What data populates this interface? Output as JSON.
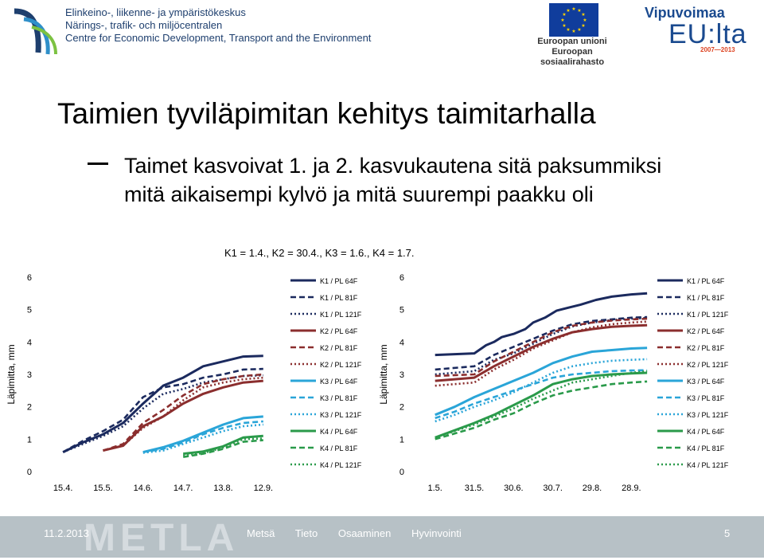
{
  "header": {
    "ely_lines": [
      "Elinkeino-, liikenne- ja ympäristökeskus",
      "Närings-, trafik- och miljöcentralen",
      "Centre for Economic Development, Transport and the Environment"
    ],
    "eu_lines": [
      "Euroopan unioni",
      "Euroopan sosiaalirahasto"
    ],
    "vipuvoimaa": "Vipuvoimaa",
    "euita": "EU:lta",
    "years": "2007—2013"
  },
  "slide": {
    "title": "Taimien tyviläpimitan kehitys taimitarhalla",
    "bullet": "Taimet kasvoivat 1. ja 2. kasvukautena sitä paksummiksi mitä aikaisempi kylvö ja mitä suurempi paakku oli",
    "note": "K1 = 1.4., K2 = 30.4., K3 = 1.6., K4 = 1.7."
  },
  "footer": {
    "date": "11.2.2013",
    "words": [
      "Metsä",
      "Tieto",
      "Osaaminen",
      "Hyvinvointi"
    ],
    "page": "5",
    "logo": "METLA"
  },
  "colors": {
    "K1": "#1b2a5e",
    "K2": "#8b2e2e",
    "K3": "#2aa5d8",
    "K4": "#2a9a4a"
  },
  "chart_data": [
    {
      "type": "line",
      "title": "",
      "xlabel": "",
      "ylabel": "Läpimitta, mm",
      "ylim": [
        0,
        6
      ],
      "x_ticks": [
        "15.4.",
        "15.5.",
        "14.6.",
        "14.7.",
        "13.8.",
        "12.9."
      ],
      "legend_position": "right",
      "series": [
        {
          "name": "K1 / PL 64F",
          "x": [
            0.5,
            1,
            1.5,
            2,
            2.5,
            3,
            3.5,
            4,
            4.5,
            5,
            5.5
          ],
          "values": [
            0.6,
            0.9,
            1.15,
            1.5,
            2.1,
            2.65,
            2.9,
            3.25,
            3.4,
            3.55,
            3.57
          ]
        },
        {
          "name": "K1 / PL 81F",
          "x": [
            0.5,
            1,
            1.5,
            2,
            2.5,
            3,
            3.5,
            4,
            4.5,
            5,
            5.5
          ],
          "values": [
            0.6,
            0.95,
            1.25,
            1.6,
            2.3,
            2.6,
            2.7,
            2.9,
            3.0,
            3.15,
            3.17
          ]
        },
        {
          "name": "K1 / PL 121F",
          "x": [
            0.5,
            1,
            1.5,
            2,
            2.5,
            3,
            3.5,
            4,
            4.5,
            5,
            5.5
          ],
          "values": [
            0.6,
            0.85,
            1.1,
            1.4,
            1.95,
            2.4,
            2.55,
            2.75,
            2.85,
            2.95,
            2.97
          ]
        },
        {
          "name": "K2 / PL 64F",
          "x": [
            1.5,
            2,
            2.5,
            3,
            3.5,
            4,
            4.5,
            5,
            5.5
          ],
          "values": [
            0.65,
            0.8,
            1.4,
            1.7,
            2.1,
            2.4,
            2.6,
            2.75,
            2.8
          ]
        },
        {
          "name": "K2 / PL 81F",
          "x": [
            1.5,
            2,
            2.5,
            3,
            3.5,
            4,
            4.5,
            5,
            5.5
          ],
          "values": [
            0.65,
            0.85,
            1.5,
            1.9,
            2.35,
            2.7,
            2.85,
            2.95,
            3.0
          ]
        },
        {
          "name": "K2 / PL 121F",
          "x": [
            1.5,
            2,
            2.5,
            3,
            3.5,
            4,
            4.5,
            5,
            5.5
          ],
          "values": [
            0.65,
            0.8,
            1.35,
            1.7,
            2.2,
            2.6,
            2.75,
            2.85,
            2.9
          ]
        },
        {
          "name": "K3 / PL 64F",
          "x": [
            2.5,
            3,
            3.5,
            4,
            4.5,
            5,
            5.5
          ],
          "values": [
            0.6,
            0.75,
            0.95,
            1.2,
            1.45,
            1.65,
            1.7
          ]
        },
        {
          "name": "K3 / PL 81F",
          "x": [
            2.5,
            3,
            3.5,
            4,
            4.5,
            5,
            5.5
          ],
          "values": [
            0.6,
            0.7,
            0.9,
            1.15,
            1.35,
            1.5,
            1.55
          ]
        },
        {
          "name": "K3 / PL 121F",
          "x": [
            2.5,
            3,
            3.5,
            4,
            4.5,
            5,
            5.5
          ],
          "values": [
            0.58,
            0.65,
            0.85,
            1.05,
            1.25,
            1.4,
            1.45
          ]
        },
        {
          "name": "K4 / PL 64F",
          "x": [
            3.5,
            4,
            4.5,
            5,
            5.5
          ],
          "values": [
            0.55,
            0.62,
            0.78,
            1.05,
            1.1
          ]
        },
        {
          "name": "K4 / PL 81F",
          "x": [
            3.5,
            4,
            4.5,
            5,
            5.5
          ],
          "values": [
            0.45,
            0.55,
            0.7,
            0.92,
            0.97
          ]
        },
        {
          "name": "K4 / PL 121F",
          "x": [
            3.5,
            4,
            4.5,
            5,
            5.5
          ],
          "values": [
            0.5,
            0.57,
            0.74,
            1.0,
            1.02
          ]
        }
      ]
    },
    {
      "type": "line",
      "title": "",
      "xlabel": "",
      "ylabel": "Läpimitta, mm",
      "ylim": [
        0,
        6
      ],
      "x_ticks": [
        "1.5.",
        "31.5.",
        "30.6.",
        "30.7.",
        "29.8.",
        "28.9."
      ],
      "legend_position": "right",
      "series": [
        {
          "name": "K1 / PL 64F",
          "x": [
            0.5,
            1.5,
            1.8,
            2,
            2.2,
            2.5,
            2.8,
            3,
            3.3,
            3.6,
            3.9,
            4.2,
            4.6,
            5,
            5.5,
            5.9
          ],
          "values": [
            3.6,
            3.65,
            3.9,
            4.0,
            4.15,
            4.25,
            4.4,
            4.6,
            4.75,
            4.97,
            5.06,
            5.15,
            5.3,
            5.4,
            5.47,
            5.5
          ]
        },
        {
          "name": "K1 / PL 81F",
          "x": [
            0.5,
            1.5,
            2,
            2.5,
            3,
            3.5,
            4,
            4.5,
            5,
            5.5,
            5.9
          ],
          "values": [
            3.15,
            3.25,
            3.6,
            3.85,
            4.1,
            4.35,
            4.55,
            4.65,
            4.7,
            4.75,
            4.77
          ]
        },
        {
          "name": "K1 / PL 121F",
          "x": [
            0.5,
            1.5,
            2,
            2.5,
            3,
            3.5,
            4,
            4.5,
            5,
            5.5,
            5.9
          ],
          "values": [
            3.0,
            3.1,
            3.45,
            3.65,
            3.95,
            4.25,
            4.48,
            4.6,
            4.68,
            4.72,
            4.74
          ]
        },
        {
          "name": "K2 / PL 64F",
          "x": [
            0.5,
            1.5,
            2,
            2.5,
            3,
            3.5,
            4,
            4.5,
            5,
            5.5,
            5.9
          ],
          "values": [
            2.8,
            2.9,
            3.25,
            3.55,
            3.85,
            4.1,
            4.3,
            4.4,
            4.47,
            4.5,
            4.52
          ]
        },
        {
          "name": "K2 / PL 81F",
          "x": [
            0.5,
            1.5,
            2,
            2.5,
            3,
            3.5,
            4,
            4.5,
            5,
            5.5,
            5.9
          ],
          "values": [
            2.95,
            3.0,
            3.4,
            3.7,
            4.0,
            4.3,
            4.5,
            4.6,
            4.66,
            4.7,
            4.72
          ]
        },
        {
          "name": "K2 / PL 121F",
          "x": [
            0.5,
            1.5,
            2,
            2.5,
            3,
            3.5,
            4,
            4.5,
            5,
            5.5,
            5.9
          ],
          "values": [
            2.65,
            2.75,
            3.15,
            3.45,
            3.8,
            4.05,
            4.3,
            4.45,
            4.55,
            4.6,
            4.63
          ]
        },
        {
          "name": "K3 / PL 64F",
          "x": [
            0.5,
            1,
            1.5,
            2,
            2.5,
            3,
            3.5,
            4,
            4.5,
            5,
            5.5,
            5.9
          ],
          "values": [
            1.75,
            2.0,
            2.3,
            2.55,
            2.8,
            3.05,
            3.35,
            3.55,
            3.7,
            3.75,
            3.8,
            3.82
          ]
        },
        {
          "name": "K3 / PL 81F",
          "x": [
            0.5,
            1,
            1.5,
            2,
            2.5,
            3,
            3.5,
            4,
            4.5,
            5,
            5.5,
            5.9
          ],
          "values": [
            1.65,
            1.85,
            2.1,
            2.3,
            2.5,
            2.7,
            2.9,
            3.0,
            3.05,
            3.1,
            3.12,
            3.13
          ]
        },
        {
          "name": "K3 / PL 121F",
          "x": [
            0.5,
            1,
            1.5,
            2,
            2.5,
            3,
            3.5,
            4,
            4.5,
            5,
            5.5,
            5.9
          ],
          "values": [
            1.55,
            1.75,
            2.0,
            2.2,
            2.45,
            2.75,
            3.05,
            3.25,
            3.35,
            3.42,
            3.45,
            3.47
          ]
        },
        {
          "name": "K4 / PL 64F",
          "x": [
            0.5,
            1.5,
            2,
            2.5,
            3,
            3.5,
            4,
            4.5,
            5,
            5.5,
            5.9
          ],
          "values": [
            1.05,
            1.5,
            1.75,
            2.05,
            2.35,
            2.7,
            2.85,
            2.95,
            3.0,
            3.03,
            3.05
          ]
        },
        {
          "name": "K4 / PL 81F",
          "x": [
            0.5,
            1.5,
            2,
            2.5,
            3,
            3.5,
            4,
            4.5,
            5,
            5.5,
            5.9
          ],
          "values": [
            1.0,
            1.35,
            1.6,
            1.8,
            2.1,
            2.35,
            2.5,
            2.6,
            2.7,
            2.75,
            2.78
          ]
        },
        {
          "name": "K4 / PL 121F",
          "x": [
            0.5,
            1.5,
            2,
            2.5,
            3,
            3.5,
            4,
            4.5,
            5,
            5.5,
            5.9
          ],
          "values": [
            1.05,
            1.45,
            1.7,
            1.95,
            2.25,
            2.5,
            2.75,
            2.85,
            2.95,
            3.05,
            3.1
          ]
        }
      ]
    }
  ]
}
